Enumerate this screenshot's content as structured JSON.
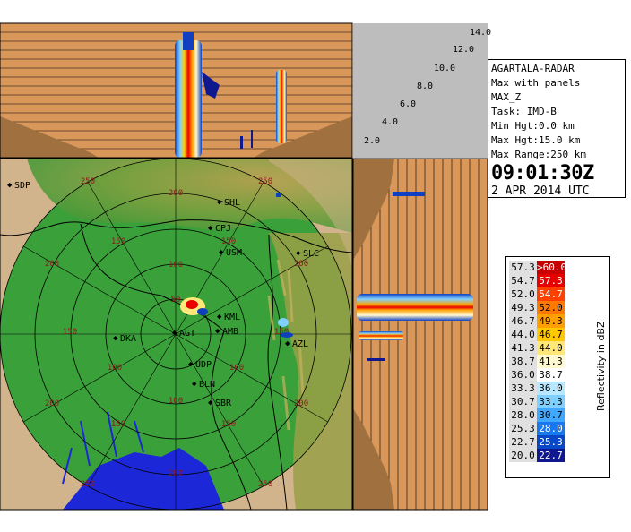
{
  "colors": {
    "top_panel_bg": "#d9975a",
    "map_land": "#3aa03a",
    "ring_color": "#000000"
  },
  "top_panel": {
    "height_labels": [
      "14.0",
      "12.0",
      "10.0",
      "8.0",
      "6.0",
      "4.0",
      "2.0"
    ]
  },
  "info": {
    "radar": "AGARTALA-RADAR",
    "product": "Max with panels",
    "param": "MAX_Z",
    "task": "Task: IMD-B",
    "min_hgt": "Min Hgt:0.0 km",
    "max_hgt": "Max Hgt:15.0 km",
    "max_range": "Max Range:250 km",
    "time": "09:01:30Z",
    "date": "2 APR 2014 UTC"
  },
  "legend": {
    "title": "Reflectivity in dBZ",
    "rows": [
      {
        "low": "57.3",
        "high": ">60.0",
        "color_low": "#e0e0e0",
        "color_high": "#c80000"
      },
      {
        "low": "54.7",
        "high": "57.3",
        "color_low": "#e0e0e0",
        "color_high": "#e80000"
      },
      {
        "low": "52.0",
        "high": "54.7",
        "color_low": "#e0e0e0",
        "color_high": "#ff4000"
      },
      {
        "low": "49.3",
        "high": "52.0",
        "color_low": "#e0e0e0",
        "color_high": "#ff7800"
      },
      {
        "low": "46.7",
        "high": "49.3",
        "color_low": "#e0e0e0",
        "color_high": "#ffa000"
      },
      {
        "low": "44.0",
        "high": "46.7",
        "color_low": "#e0e0e0",
        "color_high": "#ffc800"
      },
      {
        "low": "41.3",
        "high": "44.0",
        "color_low": "#e0e0e0",
        "color_high": "#ffe878"
      },
      {
        "low": "38.7",
        "high": "41.3",
        "color_low": "#e0e0e0",
        "color_high": "#fff8d0"
      },
      {
        "low": "36.0",
        "high": "38.7",
        "color_low": "#e0e0e0",
        "color_high": "#ffffff"
      },
      {
        "low": "33.3",
        "high": "36.0",
        "color_low": "#e0e0e0",
        "color_high": "#b8e8ff"
      },
      {
        "low": "30.7",
        "high": "33.3",
        "color_low": "#e0e0e0",
        "color_high": "#80d0ff"
      },
      {
        "low": "28.0",
        "high": "30.7",
        "color_low": "#e0e0e0",
        "color_high": "#40a8ff"
      },
      {
        "low": "25.3",
        "high": "28.0",
        "color_low": "#e0e0e0",
        "color_high": "#1878f0"
      },
      {
        "low": "22.7",
        "high": "25.3",
        "color_low": "#e0e0e0",
        "color_high": "#0848c8"
      },
      {
        "low": "20.0",
        "high": "22.7",
        "color_low": "#e0e0e0",
        "color_high": "#101890"
      }
    ]
  },
  "map": {
    "range_labels": {
      "r50": "50",
      "r100": "100",
      "r150": "150",
      "r200": "200",
      "r250": "250"
    },
    "stations": [
      {
        "code": "SDP"
      },
      {
        "code": "SHL"
      },
      {
        "code": "CPJ"
      },
      {
        "code": "USM"
      },
      {
        "code": "SLC"
      },
      {
        "code": "KML"
      },
      {
        "code": "DKA"
      },
      {
        "code": "AGT"
      },
      {
        "code": "AMB"
      },
      {
        "code": "AZL"
      },
      {
        "code": "UDP"
      },
      {
        "code": "BLN"
      },
      {
        "code": "SBR"
      }
    ]
  }
}
